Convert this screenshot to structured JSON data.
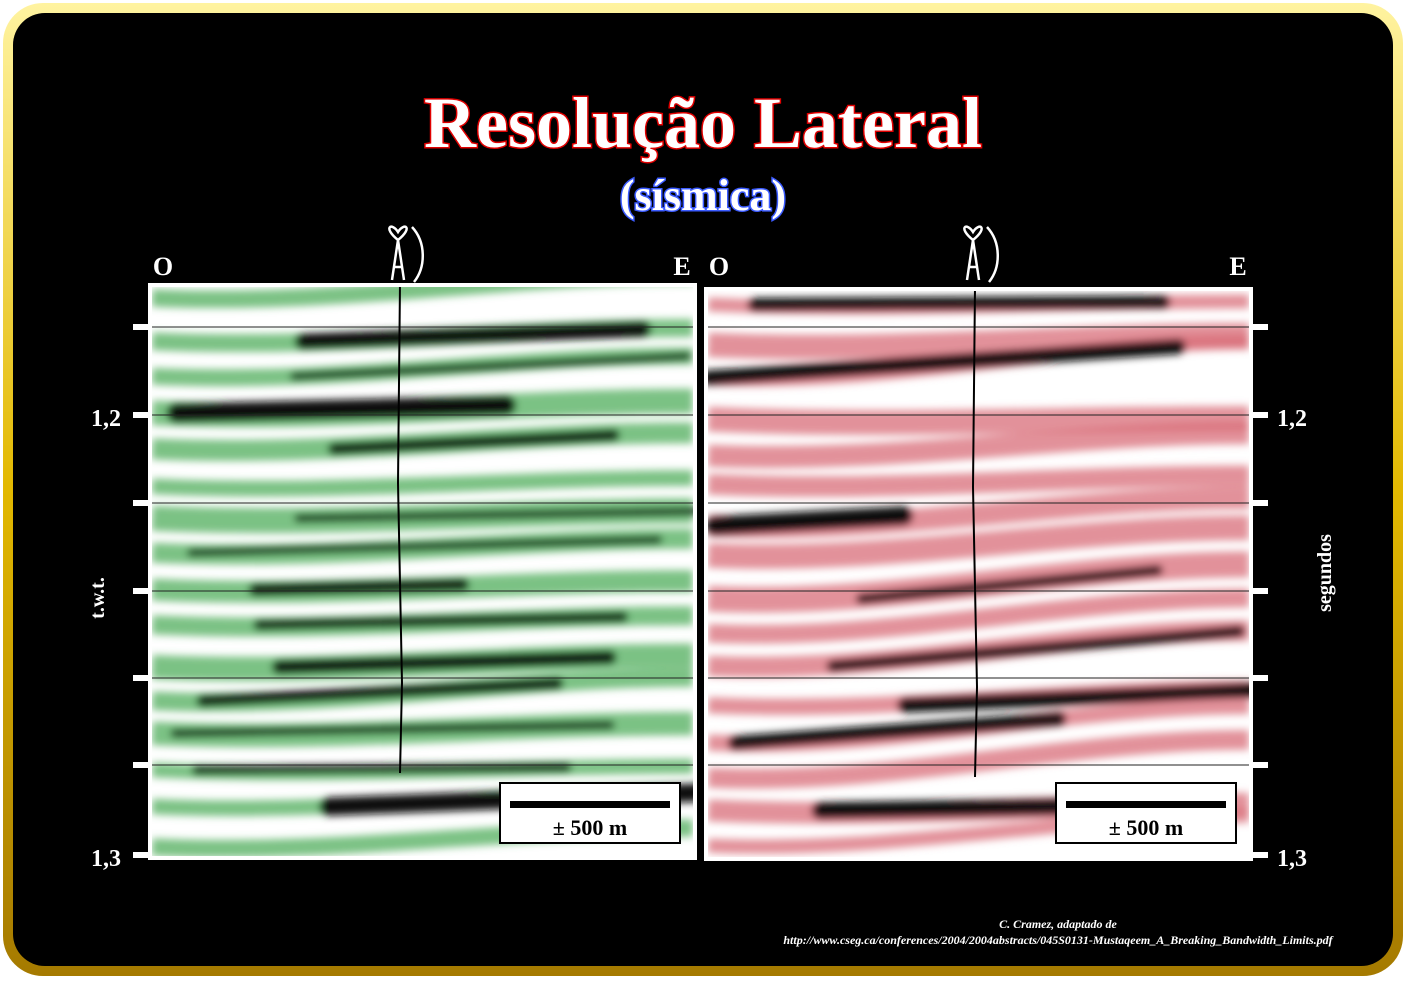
{
  "title": "Resolução Lateral",
  "subtitle": "(sísmica)",
  "panels": [
    {
      "west": "O",
      "east": "E",
      "scale_label": "± 500 m"
    },
    {
      "west": "O",
      "east": "E",
      "scale_label": "± 500 m"
    }
  ],
  "left_axis": {
    "label": "t.w.t.",
    "ticks": [
      "1,2",
      "1,3"
    ]
  },
  "right_axis": {
    "label": "segundos",
    "ticks": [
      "1,2",
      "1,3"
    ]
  },
  "credit": [
    "C. Cramez, adaptado de",
    "http://www.cseg.ca/conferences/2004/2004abstracts/045S0131-Mustaqeem_A_Breaking_Bandwidth_Limits.pdf"
  ]
}
